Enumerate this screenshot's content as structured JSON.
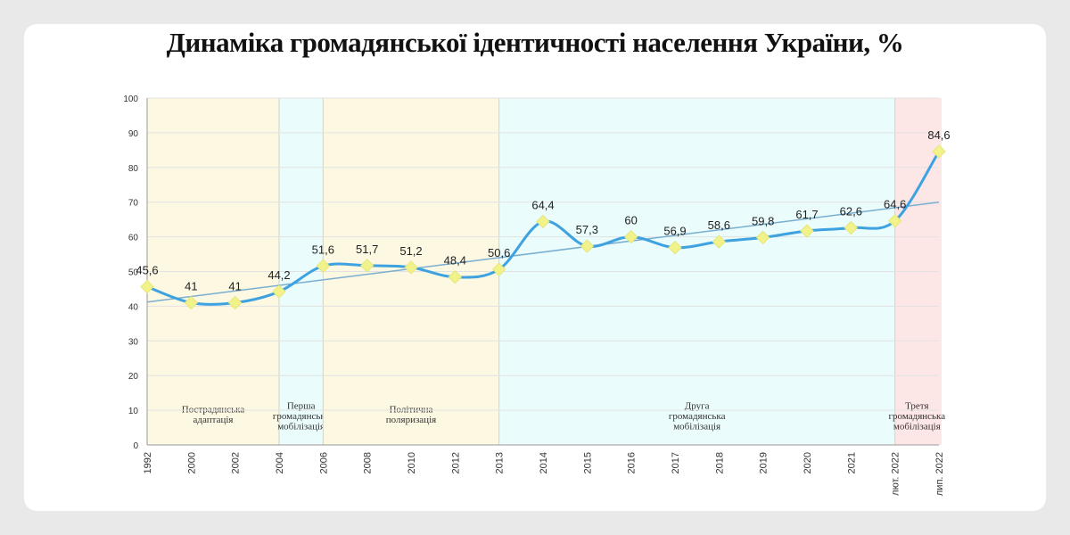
{
  "chart_data": {
    "type": "line",
    "title": "Динаміка громадянської ідентичності населення України, %",
    "categories": [
      "1992",
      "2000",
      "2002",
      "2004",
      "2006",
      "2008",
      "2010",
      "2012",
      "2013",
      "2014",
      "2015",
      "2016",
      "2017",
      "2018",
      "2019",
      "2020",
      "2021",
      "лют. 2022",
      "лип. 2022"
    ],
    "values": [
      45.6,
      41,
      41,
      44.2,
      51.6,
      51.7,
      51.2,
      48.4,
      50.6,
      64.4,
      57.3,
      60,
      56.9,
      58.6,
      59.8,
      61.7,
      62.6,
      64.6,
      84.6
    ],
    "labels": [
      "45,6",
      "41",
      "41",
      "44,2",
      "51,6",
      "51,7",
      "51,2",
      "48,4",
      "50,6",
      "64,4",
      "57,3",
      "60",
      "56,9",
      "58,6",
      "59,8",
      "61,7",
      "62,6",
      "64,6",
      "84,6"
    ],
    "ylim": [
      0,
      100
    ],
    "yticks": [
      "0",
      "10",
      "20",
      "30",
      "40",
      "50",
      "60",
      "70",
      "80",
      "90",
      "100"
    ],
    "grid": true,
    "trendline": [
      41.2,
      70
    ],
    "periods": [
      {
        "label": [
          "Пострадянська",
          "адаптація"
        ],
        "from": 0,
        "to": 3,
        "color": "#fdf8e2"
      },
      {
        "label": [
          "Перша",
          "громадянська",
          "мобілізація"
        ],
        "from": 3,
        "to": 4,
        "color": "#eafcfb"
      },
      {
        "label": [
          "Політична",
          "поляризація"
        ],
        "from": 4,
        "to": 8,
        "color": "#fdf8e2"
      },
      {
        "label": [
          "Друга",
          "громадянська",
          "мобілізація"
        ],
        "from": 8,
        "to": 17,
        "color": "#eafcfb"
      },
      {
        "label": [
          "Третя",
          "громадянська",
          "мобілізація"
        ],
        "from": 17,
        "to": 18,
        "color": "#fde6e6"
      }
    ],
    "colors": {
      "line": "#3ea2e0",
      "trend": "#7aaed0",
      "marker": "#f2f28a"
    }
  }
}
